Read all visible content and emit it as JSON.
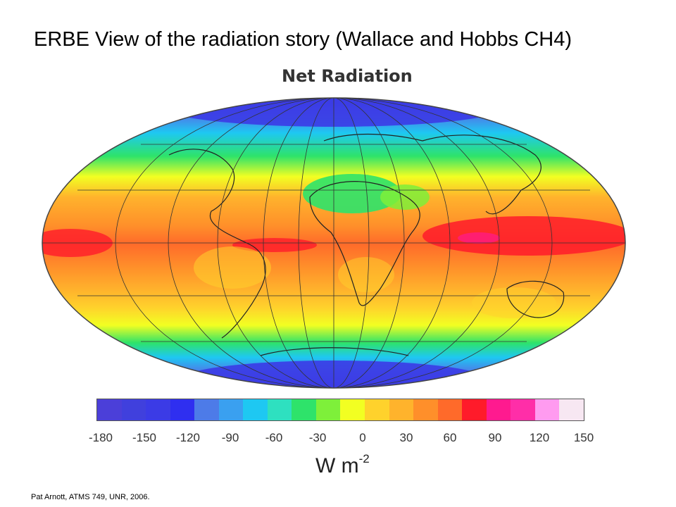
{
  "slide": {
    "title": "ERBE View of the radiation story (Wallace and Hobbs CH4)",
    "credit": "Pat Arnott, ATMS 749, UNR, 2006."
  },
  "map": {
    "title": "Net Radiation",
    "projection": "hammer-aitoff",
    "quantity": "net radiation"
  },
  "legend": {
    "ticks": [
      "-180",
      "-150",
      "-120",
      "-90",
      "-60",
      "-30",
      "0",
      "30",
      "60",
      "90",
      "120",
      "150"
    ],
    "units_base": "W m",
    "units_exp": "-2",
    "colors": [
      "#4b3fd9",
      "#4040dd",
      "#3b3be6",
      "#2f2ff0",
      "#4d7be8",
      "#3aa0f0",
      "#1ec8f2",
      "#2ee0c0",
      "#2ee36a",
      "#7ef03a",
      "#f2ff22",
      "#ffd22c",
      "#ffb32c",
      "#ff8f2a",
      "#ff6a2a",
      "#ff1b2a",
      "#ff1a8f",
      "#ff2ea8",
      "#ff9bf0",
      "#f7e7f2"
    ]
  }
}
